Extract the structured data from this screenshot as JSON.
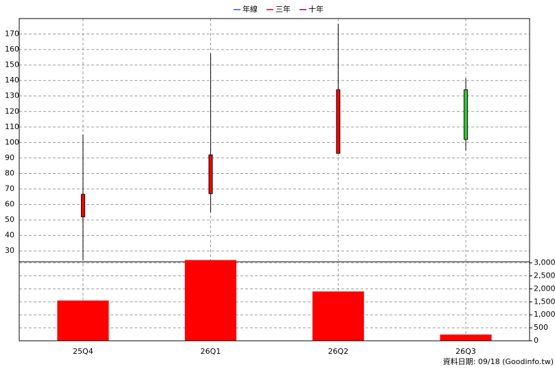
{
  "chart_data": {
    "type": "candlestick",
    "legend": [
      {
        "name": "年線",
        "color": "#2060c0"
      },
      {
        "name": "三年",
        "color": "#e00000"
      },
      {
        "name": "十年",
        "color": "#800080"
      }
    ],
    "categories": [
      "25Q4",
      "26Q1",
      "26Q2",
      "26Q3"
    ],
    "open": [
      52,
      67,
      93,
      134
    ],
    "high": [
      105,
      157.5,
      176.5,
      141.5
    ],
    "low": [
      24,
      55,
      93,
      95
    ],
    "close": [
      66.5,
      92,
      134,
      102
    ],
    "up_color": "#ff0000",
    "down_color": "#33cc33",
    "ylim": [
      23,
      180
    ],
    "yticks": [
      30,
      40,
      50,
      60,
      70,
      80,
      90,
      100,
      110,
      120,
      130,
      140,
      150,
      160,
      170
    ],
    "volume": {
      "values": [
        1550,
        3110,
        1900,
        240
      ],
      "color": "#ff0000",
      "ylim": [
        0,
        3150
      ],
      "yticks": [
        0,
        500,
        {
          "value": 1000,
          "label": "1,000"
        },
        {
          "value": 1500,
          "label": "1,500"
        },
        {
          "value": 2000,
          "label": "2,000"
        },
        {
          "value": 2500,
          "label": "2,500"
        },
        {
          "value": 3000,
          "label": "3,000"
        }
      ]
    },
    "grid": true,
    "footer": "資料日期: 09/18  (Goodinfo.tw)"
  }
}
